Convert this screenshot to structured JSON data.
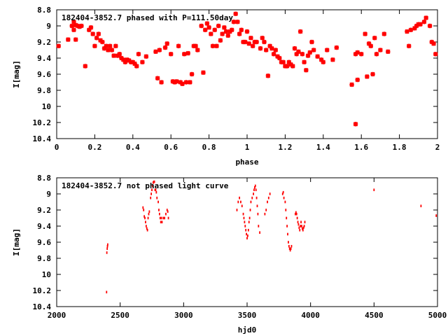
{
  "chart_data": [
    {
      "type": "scatter",
      "title": "182404-3852.7 phased with P=111.50day",
      "xlabel": "phase",
      "ylabel": "I[mag]",
      "xlim": [
        0,
        2
      ],
      "ylim": [
        8.8,
        10.4
      ],
      "y_inverted": true,
      "x_ticks": [
        "0",
        "0.2",
        "0.4",
        "0.6",
        "0.8",
        "1",
        "1.2",
        "1.4",
        "1.6",
        "1.8",
        "2"
      ],
      "y_ticks": [
        "8.8",
        "9",
        "9.2",
        "9.4",
        "9.6",
        "9.8",
        "10",
        "10.2",
        "10.4"
      ],
      "grid": false,
      "marker_color": "#ff0000",
      "series": [
        {
          "points": [
            [
              0.01,
              9.25
            ],
            [
              0.06,
              9.17
            ],
            [
              0.08,
              9.0
            ],
            [
              0.09,
              8.95
            ],
            [
              0.09,
              9.05
            ],
            [
              0.1,
              8.99
            ],
            [
              0.1,
              9.17
            ],
            [
              0.11,
              9.0
            ],
            [
              0.12,
              9.01
            ],
            [
              0.13,
              9.0
            ],
            [
              0.15,
              9.5
            ],
            [
              0.17,
              9.05
            ],
            [
              0.18,
              9.02
            ],
            [
              0.19,
              9.1
            ],
            [
              0.2,
              9.25
            ],
            [
              0.21,
              9.15
            ],
            [
              0.22,
              9.1
            ],
            [
              0.23,
              9.18
            ],
            [
              0.24,
              9.2
            ],
            [
              0.25,
              9.28
            ],
            [
              0.26,
              9.25
            ],
            [
              0.27,
              9.3
            ],
            [
              0.28,
              9.25
            ],
            [
              0.29,
              9.3
            ],
            [
              0.3,
              9.37
            ],
            [
              0.31,
              9.25
            ],
            [
              0.32,
              9.37
            ],
            [
              0.33,
              9.35
            ],
            [
              0.34,
              9.4
            ],
            [
              0.35,
              9.42
            ],
            [
              0.36,
              9.45
            ],
            [
              0.37,
              9.42
            ],
            [
              0.38,
              9.43
            ],
            [
              0.39,
              9.45
            ],
            [
              0.4,
              9.45
            ],
            [
              0.41,
              9.47
            ],
            [
              0.42,
              9.5
            ],
            [
              0.43,
              9.35
            ],
            [
              0.45,
              9.45
            ],
            [
              0.47,
              9.38
            ],
            [
              0.52,
              9.32
            ],
            [
              0.53,
              9.65
            ],
            [
              0.54,
              9.3
            ],
            [
              0.55,
              9.7
            ],
            [
              0.57,
              9.27
            ],
            [
              0.58,
              9.22
            ],
            [
              0.6,
              9.35
            ],
            [
              0.61,
              9.69
            ],
            [
              0.62,
              9.7
            ],
            [
              0.63,
              9.69
            ],
            [
              0.64,
              9.25
            ],
            [
              0.65,
              9.7
            ],
            [
              0.66,
              9.72
            ],
            [
              0.67,
              9.35
            ],
            [
              0.68,
              9.7
            ],
            [
              0.69,
              9.34
            ],
            [
              0.7,
              9.7
            ],
            [
              0.71,
              9.6
            ],
            [
              0.72,
              9.25
            ],
            [
              0.73,
              9.25
            ],
            [
              0.74,
              9.3
            ],
            [
              0.76,
              9.0
            ],
            [
              0.77,
              9.58
            ],
            [
              0.78,
              9.05
            ],
            [
              0.79,
              8.97
            ],
            [
              0.8,
              9.02
            ],
            [
              0.81,
              9.1
            ],
            [
              0.82,
              9.25
            ],
            [
              0.83,
              9.05
            ],
            [
              0.84,
              9.25
            ],
            [
              0.85,
              9.0
            ],
            [
              0.86,
              9.18
            ],
            [
              0.87,
              9.1
            ],
            [
              0.88,
              9.02
            ],
            [
              0.89,
              9.07
            ],
            [
              0.9,
              9.12
            ],
            [
              0.91,
              9.07
            ],
            [
              0.92,
              9.05
            ],
            [
              0.93,
              8.95
            ],
            [
              0.94,
              8.85
            ],
            [
              0.95,
              8.95
            ],
            [
              0.96,
              9.1
            ],
            [
              0.97,
              9.05
            ],
            [
              0.98,
              9.2
            ],
            [
              0.99,
              9.2
            ],
            [
              1.0,
              9.07
            ],
            [
              1.01,
              9.22
            ],
            [
              1.02,
              9.15
            ],
            [
              1.03,
              9.25
            ],
            [
              1.04,
              9.2
            ],
            [
              1.05,
              9.2
            ],
            [
              1.07,
              9.28
            ],
            [
              1.08,
              9.15
            ],
            [
              1.09,
              9.2
            ],
            [
              1.1,
              9.3
            ],
            [
              1.11,
              9.62
            ],
            [
              1.12,
              9.25
            ],
            [
              1.13,
              9.28
            ],
            [
              1.14,
              9.35
            ],
            [
              1.15,
              9.3
            ],
            [
              1.16,
              9.38
            ],
            [
              1.17,
              9.4
            ],
            [
              1.18,
              9.45
            ],
            [
              1.19,
              9.45
            ],
            [
              1.2,
              9.5
            ],
            [
              1.21,
              9.5
            ],
            [
              1.22,
              9.45
            ],
            [
              1.23,
              9.48
            ],
            [
              1.24,
              9.5
            ],
            [
              1.25,
              9.28
            ],
            [
              1.26,
              9.35
            ],
            [
              1.27,
              9.32
            ],
            [
              1.28,
              9.07
            ],
            [
              1.29,
              9.35
            ],
            [
              1.3,
              9.45
            ],
            [
              1.31,
              9.55
            ],
            [
              1.32,
              9.37
            ],
            [
              1.33,
              9.33
            ],
            [
              1.34,
              9.2
            ],
            [
              1.35,
              9.3
            ],
            [
              1.37,
              9.38
            ],
            [
              1.39,
              9.42
            ],
            [
              1.4,
              9.45
            ],
            [
              1.42,
              9.3
            ],
            [
              1.45,
              9.42
            ],
            [
              1.47,
              9.27
            ],
            [
              1.55,
              9.73
            ],
            [
              1.57,
              10.22
            ],
            [
              1.57,
              9.35
            ],
            [
              1.58,
              9.67
            ],
            [
              1.58,
              9.33
            ],
            [
              1.6,
              9.35
            ],
            [
              1.62,
              9.1
            ],
            [
              1.63,
              9.63
            ],
            [
              1.64,
              9.22
            ],
            [
              1.65,
              9.25
            ],
            [
              1.66,
              9.6
            ],
            [
              1.67,
              9.15
            ],
            [
              1.68,
              9.35
            ],
            [
              1.7,
              9.3
            ],
            [
              1.72,
              9.1
            ],
            [
              1.74,
              9.32
            ],
            [
              1.84,
              9.07
            ],
            [
              1.85,
              9.25
            ],
            [
              1.86,
              9.05
            ],
            [
              1.88,
              9.03
            ],
            [
              1.89,
              9.0
            ],
            [
              1.9,
              8.98
            ],
            [
              1.91,
              8.98
            ],
            [
              1.93,
              8.95
            ],
            [
              1.94,
              8.9
            ],
            [
              1.96,
              9.0
            ],
            [
              1.97,
              9.2
            ],
            [
              1.98,
              9.22
            ],
            [
              1.99,
              9.35
            ]
          ]
        }
      ]
    },
    {
      "type": "scatter",
      "title": "182404-3852.7 not phased light curve",
      "xlabel": "hjd0",
      "ylabel": "I[mag]",
      "xlim": [
        2000,
        5000
      ],
      "ylim": [
        8.8,
        10.4
      ],
      "y_inverted": true,
      "x_ticks": [
        "2000",
        "2500",
        "3000",
        "3500",
        "4000",
        "4500",
        "5000"
      ],
      "y_ticks": [
        "8.8",
        "9",
        "9.2",
        "9.4",
        "9.6",
        "9.8",
        "10",
        "10.2",
        "10.4"
      ],
      "grid": false,
      "marker_color": "#ff0000",
      "series": [
        {
          "points": [
            [
              2393,
              10.22
            ],
            [
              2395,
              9.73
            ],
            [
              2398,
              9.68
            ],
            [
              2400,
              9.65
            ],
            [
              2402,
              9.63
            ],
            [
              2680,
              9.17
            ],
            [
              2685,
              9.2
            ],
            [
              2690,
              9.28
            ],
            [
              2695,
              9.3
            ],
            [
              2700,
              9.35
            ],
            [
              2705,
              9.4
            ],
            [
              2710,
              9.43
            ],
            [
              2715,
              9.45
            ],
            [
              2720,
              9.3
            ],
            [
              2725,
              9.25
            ],
            [
              2730,
              9.22
            ],
            [
              2740,
              9.05
            ],
            [
              2745,
              9.0
            ],
            [
              2750,
              8.95
            ],
            [
              2755,
              8.9
            ],
            [
              2760,
              8.86
            ],
            [
              2765,
              8.85
            ],
            [
              2770,
              8.85
            ],
            [
              2775,
              8.95
            ],
            [
              2780,
              8.95
            ],
            [
              2785,
              8.98
            ],
            [
              2790,
              9.05
            ],
            [
              2800,
              9.1
            ],
            [
              2805,
              9.2
            ],
            [
              2810,
              9.25
            ],
            [
              2815,
              9.3
            ],
            [
              2820,
              9.35
            ],
            [
              2825,
              9.3
            ],
            [
              2830,
              9.35
            ],
            [
              2840,
              9.3
            ],
            [
              2850,
              9.3
            ],
            [
              2860,
              9.25
            ],
            [
              2870,
              9.2
            ],
            [
              2875,
              9.22
            ],
            [
              2880,
              9.3
            ],
            [
              3420,
              9.2
            ],
            [
              3430,
              9.1
            ],
            [
              3440,
              9.05
            ],
            [
              3450,
              9.1
            ],
            [
              3460,
              9.15
            ],
            [
              3470,
              9.25
            ],
            [
              3475,
              9.3
            ],
            [
              3480,
              9.35
            ],
            [
              3485,
              9.4
            ],
            [
              3490,
              9.45
            ],
            [
              3495,
              9.5
            ],
            [
              3500,
              9.55
            ],
            [
              3505,
              9.52
            ],
            [
              3510,
              9.45
            ],
            [
              3515,
              9.35
            ],
            [
              3520,
              9.3
            ],
            [
              3525,
              9.2
            ],
            [
              3530,
              9.1
            ],
            [
              3540,
              9.05
            ],
            [
              3550,
              9.0
            ],
            [
              3555,
              8.95
            ],
            [
              3560,
              8.92
            ],
            [
              3565,
              8.9
            ],
            [
              3570,
              8.95
            ],
            [
              3575,
              9.05
            ],
            [
              3580,
              9.15
            ],
            [
              3585,
              9.25
            ],
            [
              3590,
              9.4
            ],
            [
              3600,
              9.48
            ],
            [
              3640,
              9.25
            ],
            [
              3650,
              9.2
            ],
            [
              3660,
              9.1
            ],
            [
              3670,
              9.05
            ],
            [
              3680,
              9.0
            ],
            [
              3780,
              9.0
            ],
            [
              3785,
              8.98
            ],
            [
              3790,
              9.05
            ],
            [
              3800,
              9.1
            ],
            [
              3805,
              9.2
            ],
            [
              3810,
              9.3
            ],
            [
              3815,
              9.4
            ],
            [
              3820,
              9.5
            ],
            [
              3825,
              9.6
            ],
            [
              3830,
              9.65
            ],
            [
              3835,
              9.68
            ],
            [
              3840,
              9.7
            ],
            [
              3845,
              9.68
            ],
            [
              3850,
              9.65
            ],
            [
              3880,
              9.25
            ],
            [
              3885,
              9.23
            ],
            [
              3890,
              9.25
            ],
            [
              3895,
              9.3
            ],
            [
              3900,
              9.35
            ],
            [
              3905,
              9.38
            ],
            [
              3910,
              9.42
            ],
            [
              3915,
              9.45
            ],
            [
              3920,
              9.4
            ],
            [
              3925,
              9.35
            ],
            [
              3930,
              9.4
            ],
            [
              3935,
              9.43
            ],
            [
              3940,
              9.45
            ],
            [
              3945,
              9.42
            ],
            [
              3950,
              9.4
            ],
            [
              3955,
              9.35
            ],
            [
              4500,
              8.95
            ],
            [
              4870,
              9.15
            ],
            [
              4990,
              9.27
            ]
          ]
        }
      ]
    }
  ]
}
